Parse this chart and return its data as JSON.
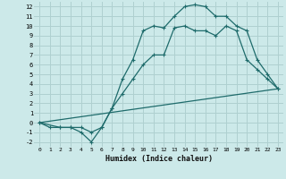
{
  "xlabel": "Humidex (Indice chaleur)",
  "bg_color": "#cce9e9",
  "grid_color": "#afd0d0",
  "line_color": "#1e6b6b",
  "xlim": [
    -0.5,
    23.5
  ],
  "ylim": [
    -2.5,
    12.5
  ],
  "xticks": [
    0,
    1,
    2,
    3,
    4,
    5,
    6,
    7,
    8,
    9,
    10,
    11,
    12,
    13,
    14,
    15,
    16,
    17,
    18,
    19,
    20,
    21,
    22,
    23
  ],
  "yticks": [
    -2,
    -1,
    0,
    1,
    2,
    3,
    4,
    5,
    6,
    7,
    8,
    9,
    10,
    11,
    12
  ],
  "line1_x": [
    0,
    1,
    2,
    3,
    4,
    5,
    6,
    7,
    8,
    9,
    10,
    11,
    12,
    13,
    14,
    15,
    16,
    17,
    18,
    19,
    20,
    21,
    22,
    23
  ],
  "line1_y": [
    0,
    -0.5,
    -0.5,
    -0.5,
    -1,
    -2,
    -0.5,
    1.5,
    4.5,
    6.5,
    9.5,
    10,
    9.8,
    11,
    12,
    12.2,
    12,
    11,
    11,
    10,
    9.5,
    6.5,
    5,
    3.5
  ],
  "line2_x": [
    0,
    2,
    3,
    4,
    5,
    6,
    7,
    8,
    9,
    10,
    11,
    12,
    13,
    14,
    15,
    16,
    17,
    18,
    19,
    20,
    21,
    22,
    23
  ],
  "line2_y": [
    0,
    -0.5,
    -0.5,
    -0.5,
    -1,
    -0.5,
    1.5,
    3,
    4.5,
    6,
    7,
    7,
    9.8,
    10,
    9.5,
    9.5,
    9,
    10,
    9.5,
    6.5,
    5.5,
    4.5,
    3.5
  ],
  "line3_x": [
    0,
    23
  ],
  "line3_y": [
    0,
    3.5
  ]
}
